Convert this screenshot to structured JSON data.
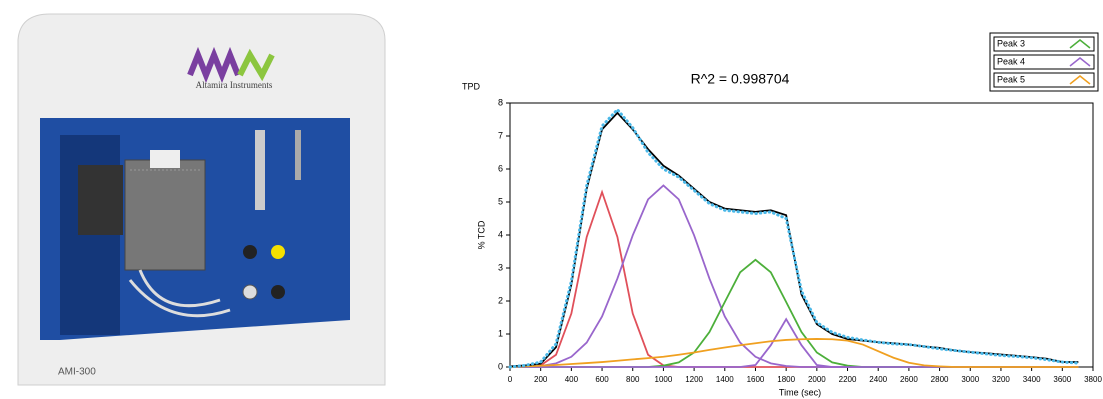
{
  "photo": {
    "brand": "Altamira Instruments",
    "model": "AMI-300"
  },
  "chart_data": {
    "type": "line",
    "title": "R^2 = 0.998704",
    "corner_label": "TPD",
    "x_label": "Time (sec)",
    "y_label": "% TCD",
    "x": [
      0,
      100,
      200,
      300,
      400,
      500,
      600,
      700,
      800,
      900,
      1000,
      1100,
      1200,
      1300,
      1400,
      1500,
      1600,
      1700,
      1800,
      1900,
      2000,
      2100,
      2200,
      2300,
      2400,
      2500,
      2600,
      2700,
      2800,
      2900,
      3000,
      3100,
      3200,
      3300,
      3400,
      3500,
      3600,
      3700
    ],
    "series": [
      {
        "color": "#e0505a",
        "values": [
          0,
          0,
          0.05,
          0.37,
          1.62,
          3.94,
          5.3,
          3.94,
          1.62,
          0.37,
          0.05,
          0,
          0,
          0,
          0,
          0,
          0,
          0,
          0,
          0,
          0,
          0,
          0,
          0,
          0,
          0,
          0,
          0,
          0,
          0,
          0,
          0,
          0,
          0,
          0,
          0,
          0,
          0
        ]
      },
      {
        "color": "#9966cc",
        "values": [
          0,
          0,
          0.03,
          0.11,
          0.31,
          0.74,
          1.53,
          2.68,
          3.99,
          5.08,
          5.5,
          5.08,
          3.99,
          2.68,
          1.53,
          0.74,
          0.31,
          0.11,
          0.03,
          0,
          0,
          0,
          0,
          0,
          0,
          0,
          0,
          0,
          0,
          0,
          0,
          0,
          0,
          0,
          0,
          0,
          0,
          0
        ]
      },
      {
        "name": "Peak 3",
        "color": "#4caf3a",
        "values": [
          0,
          0,
          0,
          0,
          0,
          0,
          0,
          0,
          0,
          0,
          0.04,
          0.14,
          0.44,
          1.06,
          1.97,
          2.87,
          3.25,
          2.87,
          1.97,
          1.06,
          0.44,
          0.14,
          0.04,
          0,
          0,
          0,
          0,
          0,
          0,
          0,
          0,
          0,
          0,
          0,
          0,
          0,
          0,
          0
        ]
      },
      {
        "name": "Peak 4",
        "color": "#9966cc",
        "values": [
          0,
          0,
          0,
          0,
          0,
          0,
          0,
          0,
          0,
          0,
          0,
          0,
          0,
          0,
          0,
          0,
          0.06,
          0.66,
          1.45,
          0.66,
          0.06,
          0,
          0,
          0,
          0,
          0,
          0,
          0,
          0,
          0,
          0,
          0,
          0,
          0,
          0,
          0,
          0,
          0
        ]
      },
      {
        "name": "Peak 5",
        "color": "#f0a020",
        "values": [
          0,
          0.02,
          0.04,
          0.06,
          0.09,
          0.12,
          0.15,
          0.19,
          0.23,
          0.27,
          0.31,
          0.37,
          0.44,
          0.52,
          0.59,
          0.66,
          0.72,
          0.78,
          0.82,
          0.84,
          0.85,
          0.84,
          0.8,
          0.68,
          0.48,
          0.28,
          0.13,
          0.05,
          0.02,
          0,
          0,
          0,
          0,
          0,
          0,
          0,
          0,
          0
        ]
      },
      {
        "color": "#000000",
        "values": [
          0.02,
          0.05,
          0.1,
          0.6,
          2.5,
          5.4,
          7.2,
          7.7,
          7.2,
          6.6,
          6.1,
          5.8,
          5.4,
          5.0,
          4.8,
          4.75,
          4.7,
          4.75,
          4.6,
          2.2,
          1.3,
          1.0,
          0.85,
          0.8,
          0.75,
          0.72,
          0.68,
          0.62,
          0.58,
          0.5,
          0.45,
          0.42,
          0.38,
          0.34,
          0.3,
          0.25,
          0.15,
          0.15
        ]
      },
      {
        "color": "#4ab8e8",
        "style": "dotted",
        "values": [
          0,
          0.05,
          0.15,
          0.7,
          2.6,
          5.5,
          7.3,
          7.8,
          7.25,
          6.5,
          6.0,
          5.75,
          5.35,
          4.95,
          4.75,
          4.7,
          4.65,
          4.7,
          4.5,
          2.3,
          1.35,
          1.05,
          0.9,
          0.82,
          0.75,
          0.7,
          0.68,
          0.62,
          0.55,
          0.5,
          0.45,
          0.4,
          0.35,
          0.32,
          0.28,
          0.22,
          0.15,
          0.12
        ]
      }
    ],
    "xlim": [
      0,
      3800
    ],
    "ylim": [
      0,
      8
    ],
    "xticks": [
      0,
      200,
      400,
      600,
      800,
      1000,
      1200,
      1400,
      1600,
      1800,
      2000,
      2200,
      2400,
      2600,
      2800,
      3000,
      3200,
      3400,
      3600,
      3800
    ],
    "yticks": [
      0,
      1,
      2,
      3,
      4,
      5,
      6,
      7,
      8
    ],
    "legend": "top-right"
  }
}
